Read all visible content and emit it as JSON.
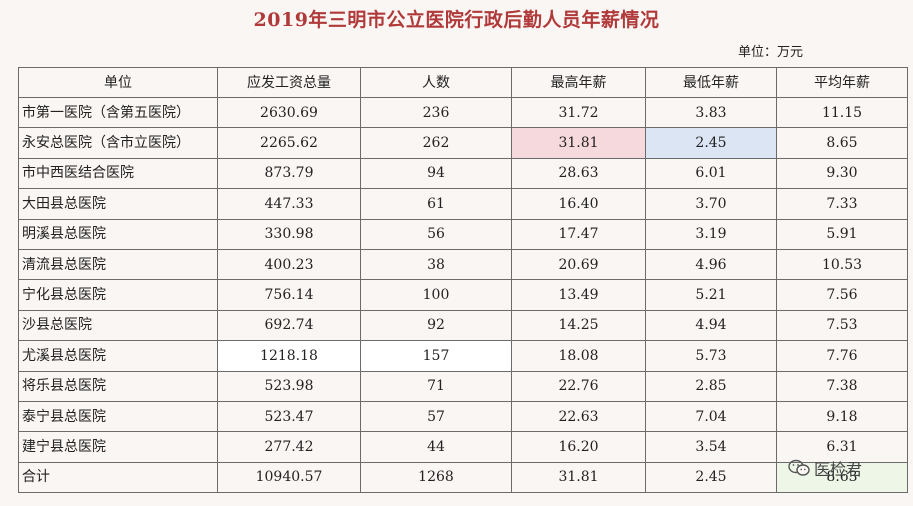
{
  "title": "2019年三明市公立医院行政后勤人员年薪情况",
  "unit_note": "单位：万元",
  "table": {
    "headers": [
      "单位",
      "应发工资总量",
      "人数",
      "最高年薪",
      "最低年薪",
      "平均年薪"
    ],
    "rows": [
      [
        "市第一医院（含第五医院）",
        "2630.69",
        "236",
        "31.72",
        "3.83",
        "11.15"
      ],
      [
        "永安总医院（含市立医院）",
        "2265.62",
        "262",
        "31.81",
        "2.45",
        "8.65"
      ],
      [
        "市中西医结合医院",
        "873.79",
        "94",
        "28.63",
        "6.01",
        "9.30"
      ],
      [
        "大田县总医院",
        "447.33",
        "61",
        "16.40",
        "3.70",
        "7.33"
      ],
      [
        "明溪县总医院",
        "330.98",
        "56",
        "17.47",
        "3.19",
        "5.91"
      ],
      [
        "清流县总医院",
        "400.23",
        "38",
        "20.69",
        "4.96",
        "10.53"
      ],
      [
        "宁化县总医院",
        "756.14",
        "100",
        "13.49",
        "5.21",
        "7.56"
      ],
      [
        "沙县总医院",
        "692.74",
        "92",
        "14.25",
        "4.94",
        "7.53"
      ],
      [
        "尤溪县总医院",
        "1218.18",
        "157",
        "18.08",
        "5.73",
        "7.76"
      ],
      [
        "将乐县总医院",
        "523.98",
        "71",
        "22.76",
        "2.85",
        "7.38"
      ],
      [
        "泰宁县总医院",
        "523.47",
        "57",
        "22.63",
        "7.04",
        "9.18"
      ],
      [
        "建宁县总医院",
        "277.42",
        "44",
        "16.20",
        "3.54",
        "6.31"
      ],
      [
        "合计",
        "10940.57",
        "1268",
        "31.81",
        "2.45",
        "8.63"
      ]
    ]
  },
  "watermark": {
    "text": "医检君",
    "icon": "wechat-icon"
  }
}
